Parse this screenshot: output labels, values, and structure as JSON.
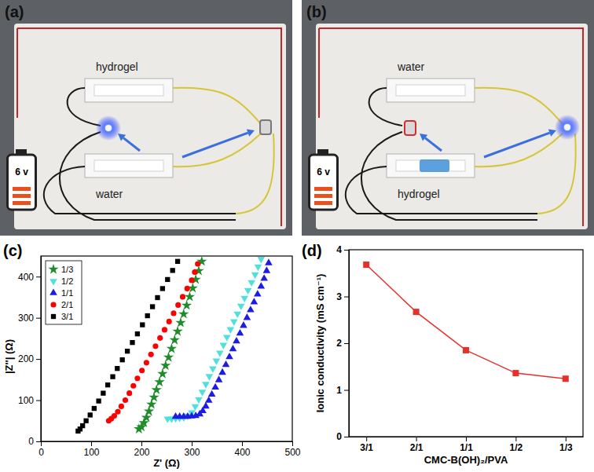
{
  "photos": [
    {
      "label": "(a)",
      "top_cell": "hydrogel",
      "bottom_cell": "water",
      "battery": "6 v"
    },
    {
      "label": "(b)",
      "top_cell": "water",
      "bottom_cell": "hydrogel",
      "battery": "6 v"
    }
  ],
  "chart_data": [
    {
      "type": "scatter",
      "title": "(c)",
      "x_label": "Z' (Ω)",
      "y_label": "|Z''| (Ω)",
      "xlim": [
        0,
        500
      ],
      "xticks": [
        0,
        100,
        200,
        300,
        400,
        500
      ],
      "ylim": [
        0,
        450
      ],
      "yticks": [
        0,
        100,
        200,
        300,
        400
      ],
      "legend": "upper left",
      "series": [
        {
          "name": "1/3",
          "color": "#1e8c2a",
          "marker": "star",
          "x": [
            195,
            200,
            205,
            210,
            215,
            220,
            225,
            230,
            236,
            242,
            248,
            254,
            260,
            266,
            272,
            278,
            284,
            290,
            296,
            302,
            308,
            314,
            320
          ],
          "values": [
            30,
            35,
            45,
            58,
            73,
            90,
            107,
            125,
            144,
            164,
            184,
            204,
            225,
            246,
            267,
            288,
            309,
            330,
            351,
            372,
            393,
            414,
            437
          ]
        },
        {
          "name": "1/2",
          "color": "#4fe0dc",
          "marker": "triangle-down",
          "x": [
            252,
            260,
            268,
            276,
            284,
            292,
            300,
            307,
            314,
            321,
            328,
            335,
            342,
            349,
            356,
            363,
            370,
            377,
            384,
            391,
            398,
            405,
            412,
            419,
            426,
            432,
            438
          ],
          "values": [
            55,
            55,
            56,
            57,
            58,
            62,
            70,
            85,
            102,
            120,
            139,
            158,
            177,
            196,
            215,
            234,
            253,
            272,
            291,
            310,
            329,
            348,
            367,
            386,
            405,
            424,
            443
          ]
        },
        {
          "name": "1/1",
          "color": "#1c1ce6",
          "marker": "triangle-up",
          "x": [
            268,
            276,
            284,
            292,
            300,
            308,
            316,
            322,
            328,
            334,
            340,
            347,
            354,
            361,
            368,
            375,
            382,
            389,
            396,
            403,
            410,
            417,
            424,
            431,
            438,
            444,
            449,
            453
          ],
          "values": [
            60,
            60,
            60,
            60,
            61,
            62,
            66,
            74,
            85,
            99,
            114,
            131,
            149,
            167,
            186,
            205,
            224,
            243,
            262,
            281,
            300,
            319,
            338,
            357,
            376,
            395,
            414,
            433
          ]
        },
        {
          "name": "2/1",
          "color": "#ff0000",
          "marker": "circle",
          "x": [
            135,
            140,
            146,
            153,
            160,
            168,
            176,
            184,
            192,
            201,
            210,
            219,
            228,
            237,
            246,
            255,
            264,
            273,
            282,
            291,
            300,
            306,
            312
          ],
          "values": [
            50,
            55,
            62,
            72,
            85,
            100,
            117,
            135,
            153,
            172,
            191,
            211,
            231,
            251,
            271,
            291,
            311,
            331,
            351,
            371,
            391,
            411,
            431
          ]
        },
        {
          "name": "3/1",
          "color": "#000000",
          "marker": "square",
          "x": [
            74,
            78,
            83,
            90,
            98,
            106,
            115,
            124,
            133,
            143,
            152,
            162,
            172,
            182,
            192,
            202,
            212,
            222,
            232,
            242,
            252,
            262,
            272
          ],
          "values": [
            25,
            30,
            38,
            50,
            64,
            80,
            98,
            117,
            137,
            157,
            177,
            198,
            219,
            240,
            261,
            283,
            305,
            327,
            349,
            371,
            393,
            415,
            437
          ]
        }
      ]
    },
    {
      "type": "line",
      "title": "(d)",
      "x_label": "CMC-B(OH)₂/PVA",
      "y_label": "Ionic conductivity (mS cm⁻¹)",
      "categories": [
        "3/1",
        "2/1",
        "1/1",
        "1/2",
        "1/3"
      ],
      "values": [
        3.68,
        2.67,
        1.85,
        1.36,
        1.24
      ],
      "ylim": [
        0,
        4
      ],
      "yticks": [
        0,
        1,
        2,
        3,
        4
      ],
      "color": "#e8302a",
      "marker": "square"
    }
  ]
}
